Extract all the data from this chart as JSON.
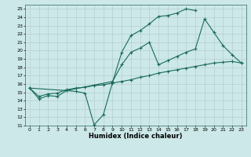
{
  "xlabel": "Humidex (Indice chaleur)",
  "xlim": [
    -0.5,
    23.5
  ],
  "ylim": [
    11,
    25.5
  ],
  "xticks": [
    0,
    1,
    2,
    3,
    4,
    5,
    6,
    7,
    8,
    9,
    10,
    11,
    12,
    13,
    14,
    15,
    16,
    17,
    18,
    19,
    20,
    21,
    22,
    23
  ],
  "yticks": [
    11,
    12,
    13,
    14,
    15,
    16,
    17,
    18,
    19,
    20,
    21,
    22,
    23,
    24,
    25
  ],
  "bg_color": "#cce8e8",
  "grid_color": "#b0c8c8",
  "line_color": "#1a6b5a",
  "line1_x": [
    0,
    1,
    2,
    3,
    4,
    5,
    6,
    7,
    8,
    9,
    10,
    11,
    12,
    13,
    14,
    15,
    16,
    17,
    18
  ],
  "line1_y": [
    15.5,
    14.2,
    14.6,
    14.5,
    15.2,
    15.1,
    14.9,
    11.1,
    12.3,
    16.2,
    19.8,
    21.8,
    22.4,
    23.2,
    24.1,
    24.2,
    24.5,
    25.0,
    24.8
  ],
  "line2_x": [
    0,
    4,
    9,
    10,
    11,
    12,
    13,
    14,
    15,
    16,
    17,
    18,
    19,
    20,
    21,
    22,
    23
  ],
  "line2_y": [
    15.5,
    15.2,
    16.3,
    18.3,
    19.8,
    20.3,
    21.0,
    18.3,
    18.8,
    19.3,
    19.8,
    20.2,
    23.8,
    22.2,
    20.6,
    19.5,
    18.5
  ],
  "line3_x": [
    0,
    1,
    2,
    3,
    4,
    5,
    6,
    7,
    8,
    9,
    10,
    11,
    12,
    13,
    14,
    15,
    16,
    17,
    18,
    19,
    20,
    21,
    22,
    23
  ],
  "line3_y": [
    15.5,
    14.5,
    14.8,
    14.9,
    15.3,
    15.5,
    15.6,
    15.8,
    15.9,
    16.1,
    16.3,
    16.5,
    16.8,
    17.0,
    17.3,
    17.5,
    17.7,
    17.9,
    18.1,
    18.3,
    18.5,
    18.6,
    18.7,
    18.5
  ],
  "figsize": [
    3.2,
    2.0
  ],
  "dpi": 100
}
